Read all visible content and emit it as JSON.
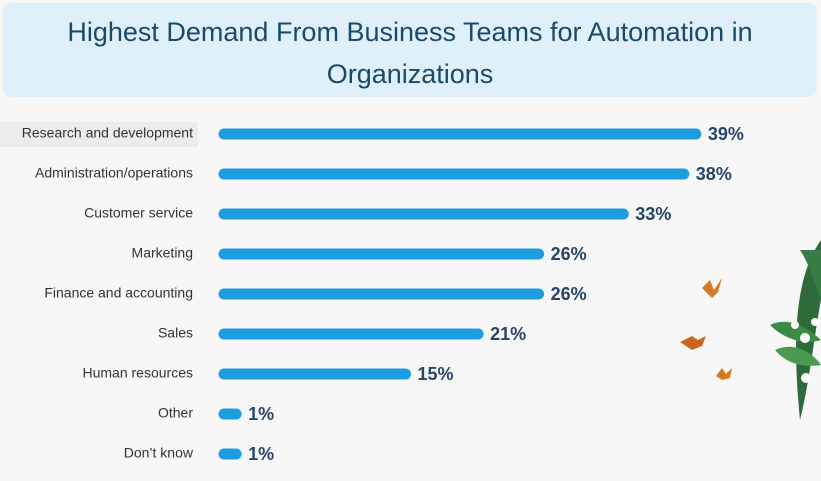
{
  "chart_data": {
    "type": "bar",
    "orientation": "horizontal",
    "title": "Highest Demand From Business Teams for Automation in Organizations",
    "categories": [
      "Research and development",
      "Administration/operations",
      "Customer service",
      "Marketing",
      "Finance and accounting",
      "Sales",
      "Human resources",
      "Other",
      "Don’t know"
    ],
    "values": [
      39,
      38,
      33,
      26,
      26,
      21,
      15,
      1,
      1
    ],
    "value_labels": [
      "39%",
      "38%",
      "33%",
      "26%",
      "26%",
      "21%",
      "15%",
      "1%",
      "1%"
    ],
    "color": "#1c9de0"
  }
}
